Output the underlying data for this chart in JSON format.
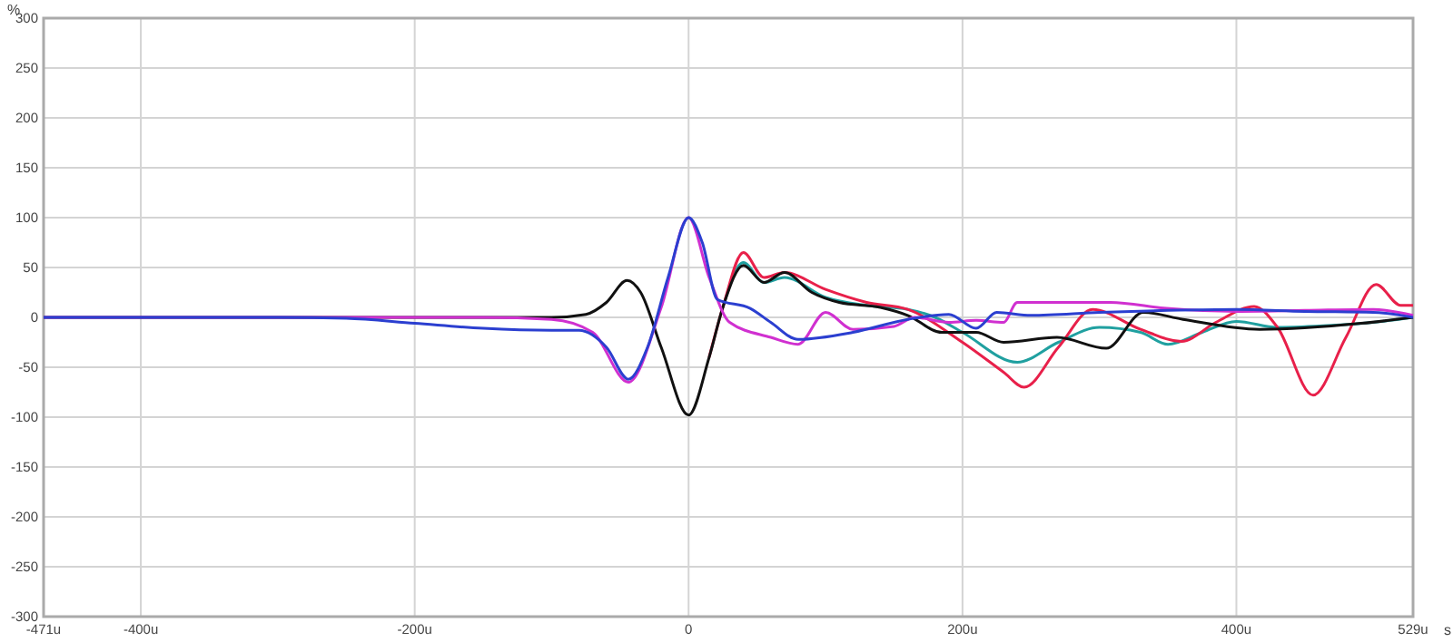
{
  "chart_data": {
    "type": "line",
    "xlabel": "s",
    "ylabel": "%",
    "xlim": [
      -471,
      529
    ],
    "ylim": [
      -300,
      300
    ],
    "xticks": [
      {
        "value": -471,
        "label": "-471u"
      },
      {
        "value": -400,
        "label": "-400u"
      },
      {
        "value": -200,
        "label": "-200u"
      },
      0,
      {
        "value": 200,
        "label": "200u"
      },
      {
        "value": 400,
        "label": "400u"
      },
      {
        "value": 529,
        "label": "529u"
      }
    ],
    "yticks": [
      -300,
      -250,
      -200,
      -150,
      -100,
      -50,
      0,
      50,
      100,
      150,
      200,
      250,
      300
    ],
    "grid": true,
    "marker": "none",
    "line_style": "solid",
    "series": [
      {
        "color": "#20a0a0",
        "x": [
          25,
          40,
          55,
          70,
          100,
          130,
          160,
          180,
          200,
          240,
          270,
          300,
          330,
          350,
          375,
          400,
          430,
          470,
          500,
          529
        ],
        "values": [
          10,
          55,
          35,
          40,
          20,
          12,
          8,
          0,
          -15,
          -45,
          -25,
          -10,
          -15,
          -27,
          -15,
          -4,
          -10,
          -8,
          -5,
          0
        ]
      },
      {
        "color": "#e8204a",
        "x": [
          15,
          25,
          40,
          55,
          70,
          100,
          130,
          160,
          200,
          230,
          245,
          270,
          295,
          330,
          360,
          385,
          413,
          430,
          456,
          480,
          502,
          520,
          529
        ],
        "values": [
          -40,
          10,
          65,
          40,
          45,
          28,
          15,
          8,
          -25,
          -55,
          -70,
          -30,
          8,
          -12,
          -24,
          -5,
          11,
          -10,
          -78,
          -20,
          33,
          12,
          12
        ]
      },
      {
        "color": "#111111",
        "x": [
          -471,
          -300,
          -100,
          -75,
          -60,
          -45,
          -35,
          -20,
          0,
          15,
          25,
          40,
          55,
          70,
          90,
          110,
          140,
          160,
          185,
          210,
          230,
          269,
          305,
          332,
          361,
          417,
          491,
          529
        ],
        "values": [
          0,
          0,
          0,
          3,
          15,
          37,
          25,
          -30,
          -98,
          -40,
          10,
          52,
          35,
          45,
          25,
          15,
          10,
          2,
          -15,
          -15,
          -25,
          -20,
          -31,
          5,
          -2,
          -12,
          -6,
          0
        ]
      },
      {
        "color": "#d030d0",
        "x": [
          -471,
          -300,
          -150,
          -100,
          -70,
          -44,
          -20,
          0,
          15,
          30,
          60,
          80,
          100,
          120,
          150,
          165,
          190,
          210,
          230,
          240,
          255,
          308,
          349,
          400,
          450,
          500,
          529
        ],
        "values": [
          0,
          0,
          0,
          -2,
          -15,
          -65,
          10,
          100,
          40,
          -5,
          -20,
          -27,
          5,
          -12,
          -9,
          0,
          -5,
          -3,
          -5,
          15,
          15,
          15,
          9,
          6,
          7,
          8,
          2
        ]
      },
      {
        "color": "#2b3fd0",
        "x": [
          -471,
          -300,
          -250,
          -200,
          -150,
          -100,
          -80,
          -60,
          -44,
          -30,
          -15,
          0,
          10,
          21,
          45,
          60,
          80,
          120,
          160,
          190,
          210,
          225,
          250,
          300,
          350,
          400,
          450,
          500,
          529
        ],
        "values": [
          0,
          0,
          -1,
          -6,
          -11,
          -13,
          -13,
          -30,
          -62,
          -30,
          40,
          100,
          75,
          18,
          9,
          -5,
          -22,
          -15,
          -2,
          3,
          -11,
          5,
          2,
          5,
          7,
          8,
          6,
          5,
          0
        ]
      }
    ]
  }
}
